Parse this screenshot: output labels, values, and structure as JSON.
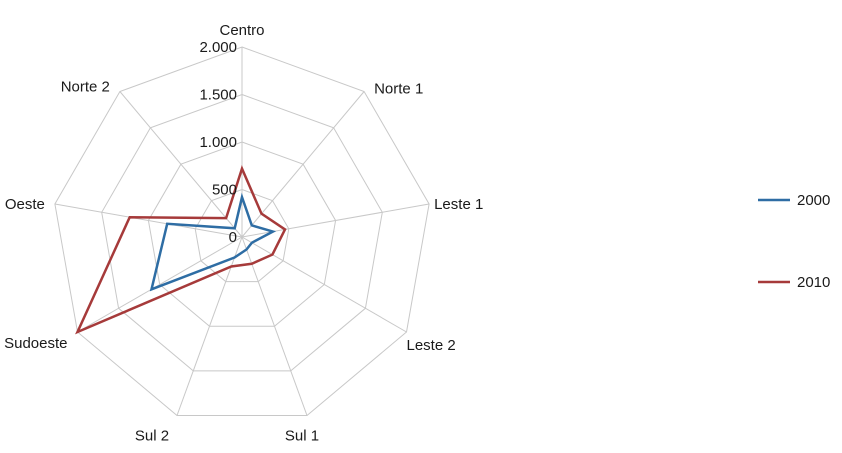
{
  "chart_data": {
    "type": "radar",
    "categories": [
      "Centro",
      "Norte 1",
      "Leste 1",
      "Leste 2",
      "Sul 1",
      "Sul 2",
      "Sudoeste",
      "Oeste",
      "Norte 2"
    ],
    "ticks": [
      "0",
      "500",
      "1.000",
      "1.500",
      "2.000"
    ],
    "tick_values": [
      0,
      500,
      1000,
      1500,
      2000
    ],
    "rmax": 2000,
    "grid": true,
    "legend_position": "right",
    "series": [
      {
        "name": "2000",
        "color": "#2e6da4",
        "values": [
          420,
          160,
          330,
          120,
          140,
          230,
          1100,
          800,
          120
        ]
      },
      {
        "name": "2010",
        "color": "#a63a3a",
        "values": [
          720,
          320,
          460,
          370,
          300,
          330,
          2000,
          1200,
          260
        ]
      }
    ]
  }
}
